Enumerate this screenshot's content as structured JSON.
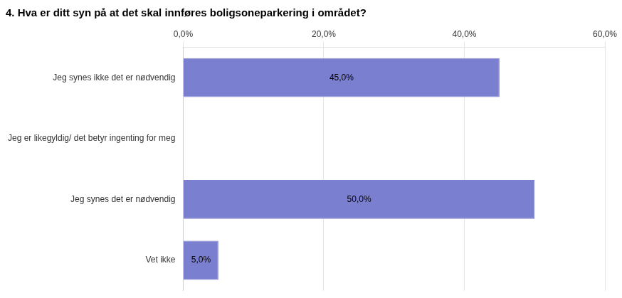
{
  "chart_data": {
    "type": "bar",
    "orientation": "horizontal",
    "title": "4. Hva er ditt syn på at det skal innføres boligsoneparkering i området?",
    "categories": [
      "Jeg synes ikke det er nødvendig",
      "Jeg er likegyldig/ det betyr ingenting for meg",
      "Jeg synes det er nødvendig",
      "Vet ikke"
    ],
    "values": [
      45.0,
      0.0,
      50.0,
      5.0
    ],
    "value_labels": [
      "45,0%",
      null,
      "50,0%",
      "5,0%"
    ],
    "data_labels": true,
    "color": "#7b7fcf",
    "xlim": [
      0,
      60
    ],
    "xticks": [
      {
        "value": 0,
        "label": "0,0%"
      },
      {
        "value": 20,
        "label": "20,0%"
      },
      {
        "value": 40,
        "label": "40,0%"
      },
      {
        "value": 60,
        "label": "60,0%"
      }
    ],
    "grid": true
  }
}
